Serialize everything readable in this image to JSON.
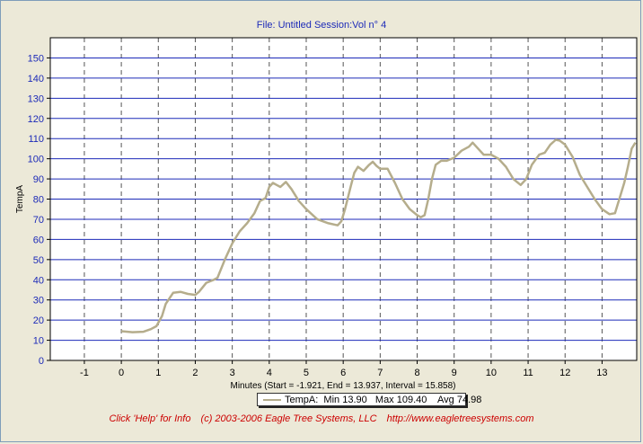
{
  "header": {
    "title": "File: Untitled   Session:Vol n° 4"
  },
  "legend": {
    "series_name": "TempA:",
    "min": "Min 13.90",
    "max": "Max 109.40",
    "avg": "Avg 74.98"
  },
  "footer": {
    "help": "Click 'Help' for Info",
    "copyright": "(c) 2003-2006 Eagle Tree Systems, LLC",
    "url": "http://www.eagletreesystems.com"
  },
  "colors": {
    "background": "#ece9d8",
    "plot_background": "#ffffff",
    "grid_horizontal": "#1c2ab8",
    "grid_vertical": "#555555",
    "series": "#b5ad8c",
    "title": "#1c2ab8",
    "footer": "#cc0000"
  },
  "chart_data": {
    "type": "line",
    "title": "File: Untitled   Session:Vol n° 4",
    "xlabel": "Minutes (Start = -1.921,  End = 13.937,  Interval =  15.858)",
    "ylabel": "TempA",
    "xlim": [
      -1.921,
      13.937
    ],
    "ylim": [
      0,
      160
    ],
    "x_ticks": [
      -1,
      0,
      1,
      2,
      3,
      4,
      5,
      6,
      7,
      8,
      9,
      10,
      11,
      12,
      13
    ],
    "y_ticks": [
      0,
      10,
      20,
      30,
      40,
      50,
      60,
      70,
      80,
      90,
      100,
      110,
      120,
      130,
      140,
      150
    ],
    "grid": true,
    "legend_position": "bottom-center",
    "series": [
      {
        "name": "TempA",
        "x": [
          0.0,
          0.3,
          0.6,
          0.8,
          0.95,
          1.1,
          1.2,
          1.4,
          1.6,
          1.8,
          2.0,
          2.1,
          2.3,
          2.5,
          2.6,
          2.8,
          3.0,
          3.2,
          3.4,
          3.6,
          3.75,
          3.9,
          4.0,
          4.1,
          4.2,
          4.3,
          4.45,
          4.6,
          4.8,
          5.0,
          5.3,
          5.6,
          5.85,
          5.95,
          6.05,
          6.2,
          6.3,
          6.4,
          6.55,
          6.7,
          6.8,
          6.9,
          7.0,
          7.2,
          7.4,
          7.6,
          7.8,
          8.0,
          8.1,
          8.2,
          8.3,
          8.4,
          8.5,
          8.65,
          8.8,
          9.0,
          9.2,
          9.4,
          9.5,
          9.6,
          9.7,
          9.8,
          10.0,
          10.2,
          10.4,
          10.6,
          10.8,
          10.95,
          11.1,
          11.3,
          11.45,
          11.6,
          11.75,
          11.85,
          12.0,
          12.2,
          12.4,
          12.6,
          12.8,
          13.0,
          13.2,
          13.35,
          13.5,
          13.6,
          13.7,
          13.8,
          13.9
        ],
        "values": [
          14.5,
          14.0,
          14.2,
          15.5,
          17.0,
          22.0,
          28.0,
          33.5,
          34.0,
          33.0,
          32.5,
          34.0,
          38.5,
          40.0,
          41.0,
          50.0,
          58.0,
          64.0,
          68.0,
          73.0,
          79.0,
          80.5,
          86.0,
          88.0,
          87.0,
          86.0,
          88.5,
          85.0,
          79.0,
          75.0,
          70.0,
          68.0,
          67.0,
          69.0,
          75.0,
          86.0,
          93.0,
          96.0,
          94.0,
          97.0,
          98.5,
          96.5,
          95.0,
          95.0,
          88.0,
          80.0,
          75.0,
          72.0,
          71.0,
          72.0,
          80.0,
          90.0,
          97.0,
          99.0,
          99.0,
          100.5,
          104.0,
          106.0,
          108.0,
          106.0,
          104.0,
          102.0,
          102.0,
          100.0,
          96.0,
          90.0,
          87.0,
          90.0,
          97.0,
          102.0,
          103.0,
          107.0,
          109.4,
          109.0,
          107.0,
          101.0,
          92.0,
          86.0,
          80.0,
          75.0,
          72.5,
          73.0,
          82.0,
          88.0,
          96.0,
          105.0,
          108.0
        ]
      }
    ]
  }
}
